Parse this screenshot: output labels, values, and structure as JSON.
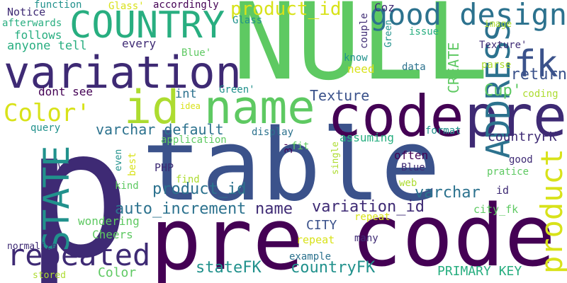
{
  "palette": {
    "background": "#ffffff",
    "dark_purple": "#440154",
    "indigo": "#3e2a74",
    "blue": "#3b528b",
    "steel": "#2c728e",
    "teal": "#21918c",
    "sea": "#28ae80",
    "green": "#5ec962",
    "lime": "#addc30",
    "yellow": "#d8e219"
  },
  "words": [
    {
      "text": "p",
      "color": "#3e2a74"
    },
    {
      "text": "table",
      "color": "#3b528b"
    },
    {
      "text": "pre",
      "color": "#440154"
    },
    {
      "text": "code",
      "color": "#440154"
    },
    {
      "text": "NULL",
      "color": "#5ec962"
    },
    {
      "text": "code",
      "color": "#440154"
    },
    {
      "text": "pre",
      "color": "#3e2a74"
    },
    {
      "text": "variation",
      "color": "#3e2a74"
    },
    {
      "text": "name",
      "color": "#5ec962"
    },
    {
      "text": "id",
      "color": "#addc30"
    },
    {
      "text": "COUNTRY",
      "color": "#28ae80"
    },
    {
      "text": "good design",
      "color": "#2c728e"
    },
    {
      "text": "fk",
      "color": "#3b528b"
    },
    {
      "text": "ADDRESS",
      "color": "#2c728e"
    },
    {
      "text": "STATE",
      "color": "#21918c"
    },
    {
      "text": "product",
      "color": "#d8e219"
    },
    {
      "text": "repeated",
      "color": "#3e2a74"
    },
    {
      "text": "Color'",
      "color": "#d8e219"
    },
    {
      "text": "product_id",
      "color": "#d8e219"
    },
    {
      "text": "return",
      "color": "#3b528b"
    },
    {
      "text": "Texture",
      "color": "#3b528b"
    },
    {
      "text": "auto_increment",
      "color": "#2c728e"
    },
    {
      "text": "name",
      "color": "#3e2a74"
    },
    {
      "text": "variation_id",
      "color": "#3e2a74"
    },
    {
      "text": "product_id",
      "color": "#2c728e"
    },
    {
      "text": "varchar default",
      "color": "#2c728e"
    },
    {
      "text": "varchar",
      "color": "#2c728e"
    },
    {
      "text": "stateFK",
      "color": "#21918c"
    },
    {
      "text": "countryFK",
      "color": "#21918c"
    },
    {
      "text": "Cup'",
      "color": "#5ec962"
    },
    {
      "text": "CREATE",
      "color": "#5ec962"
    },
    {
      "text": "PRIMARY KEY",
      "color": "#28ae80"
    },
    {
      "text": "countryFK",
      "color": "#3e2a74"
    },
    {
      "text": "Color",
      "color": "#5ec962"
    },
    {
      "text": "CITY",
      "color": "#3b528b"
    },
    {
      "text": "Cheers",
      "color": "#5ec962"
    },
    {
      "text": "int",
      "color": "#2c728e"
    },
    {
      "text": "often",
      "color": "#440154"
    },
    {
      "text": "assuming",
      "color": "#28ae80"
    },
    {
      "text": "wondering",
      "color": "#5ec962"
    },
    {
      "text": "anyone tell",
      "color": "#28ae80"
    },
    {
      "text": "follows",
      "color": "#28ae80"
    },
    {
      "text": "every",
      "color": "#3e2a74"
    },
    {
      "text": "Notice",
      "color": "#3e2a74"
    },
    {
      "text": "afterwards",
      "color": "#28ae80"
    },
    {
      "text": "dont see",
      "color": "#440154"
    },
    {
      "text": "Green'",
      "color": "#21918c"
    },
    {
      "text": "Blue'",
      "color": "#5ec962"
    },
    {
      "text": "Blue",
      "color": "#3e2a74"
    },
    {
      "text": "need",
      "color": "#d8e219"
    },
    {
      "text": "know",
      "color": "#21918c"
    },
    {
      "text": "couple",
      "color": "#3e2a74"
    },
    {
      "text": "Green",
      "color": "#21918c"
    },
    {
      "text": "Coz",
      "color": "#3e2a74"
    },
    {
      "text": "Glass'",
      "color": "#d8e219"
    },
    {
      "text": "Glass",
      "color": "#21918c"
    },
    {
      "text": "accordingly",
      "color": "#440154"
    },
    {
      "text": "function",
      "color": "#21918c"
    },
    {
      "text": "issue",
      "color": "#28ae80"
    },
    {
      "text": "image",
      "color": "#addc30"
    },
    {
      "text": "Texture'",
      "color": "#3e2a74"
    },
    {
      "text": "parse",
      "color": "#addc30"
    },
    {
      "text": "data",
      "color": "#2c728e"
    },
    {
      "text": "coding",
      "color": "#addc30"
    },
    {
      "text": "query",
      "color": "#21918c"
    },
    {
      "text": "idea",
      "color": "#d8e219"
    },
    {
      "text": "display",
      "color": "#2c728e"
    },
    {
      "text": "application",
      "color": "#5ec962"
    },
    {
      "text": "3'",
      "color": "#440154"
    },
    {
      "text": "fit",
      "color": "#5ec962"
    },
    {
      "text": "format",
      "color": "#21918c"
    },
    {
      "text": "single",
      "color": "#addc30"
    },
    {
      "text": "good",
      "color": "#3e2a74"
    },
    {
      "text": "pratice",
      "color": "#5ec962"
    },
    {
      "text": "id",
      "color": "#3e2a74"
    },
    {
      "text": "web",
      "color": "#addc30"
    },
    {
      "text": "city_fk",
      "color": "#5ec962"
    },
    {
      "text": "PHP",
      "color": "#3e2a74"
    },
    {
      "text": "find",
      "color": "#addc30"
    },
    {
      "text": "even",
      "color": "#21918c"
    },
    {
      "text": "best",
      "color": "#d8e219"
    },
    {
      "text": "will",
      "color": "#3e2a74"
    },
    {
      "text": "kind",
      "color": "#5ec962"
    },
    {
      "text": "normalize",
      "color": "#3e2a74"
    },
    {
      "text": "stored",
      "color": "#addc30"
    },
    {
      "text": "example",
      "color": "#2c728e"
    },
    {
      "text": "repeat",
      "color": "#d8e219"
    },
    {
      "text": "repeat",
      "color": "#d8e219"
    },
    {
      "text": "many",
      "color": "#3e2a74"
    }
  ]
}
